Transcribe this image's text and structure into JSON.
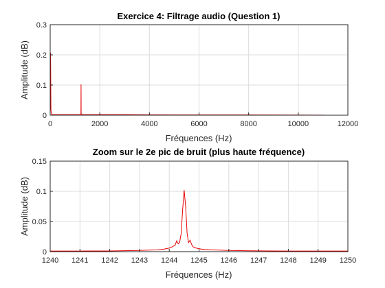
{
  "chart_data": [
    {
      "type": "line",
      "title": "Exercice 4: Filtrage audio (Question 1)",
      "xlabel": "Fréquences (Hz)",
      "ylabel": "Amplitude (dB)",
      "xlim": [
        0,
        12000
      ],
      "ylim": [
        0,
        0.3
      ],
      "xticks": [
        0,
        2000,
        4000,
        6000,
        8000,
        10000,
        12000
      ],
      "yticks": [
        0,
        0.1,
        0.2,
        0.3
      ],
      "xtick_labels": [
        "0",
        "2000",
        "4000",
        "6000",
        "8000",
        "10000",
        "12000"
      ],
      "ytick_labels": [
        "0",
        "0.1",
        "0.2",
        "0.3"
      ],
      "grid": true,
      "color": "#e60000",
      "series": [
        {
          "x": [
            0,
            8,
            15,
            22,
            30,
            45,
            60,
            100,
            200,
            400,
            700,
            1000,
            1200,
            1230,
            1240,
            1244.5,
            1249,
            1260,
            1300,
            1600,
            2000,
            2500,
            3000,
            4000,
            5000,
            6000,
            7000,
            8000,
            9000,
            10000,
            11025
          ],
          "y": [
            0.003,
            0.06,
            0.207,
            0.14,
            0.02,
            0.006,
            0.003,
            0.002,
            0.002,
            0.002,
            0.002,
            0.002,
            0.002,
            0.003,
            0.006,
            0.102,
            0.006,
            0.003,
            0.002,
            0.002,
            0.002,
            0.002,
            0.002,
            0.0015,
            0.001,
            0.001,
            0.001,
            0.001,
            0.0008,
            0.0006,
            0.0003
          ]
        }
      ]
    },
    {
      "type": "line",
      "title": "Zoom sur le 2e pic de bruit (plus haute fréquence)",
      "xlabel": "Fréquences (Hz)",
      "ylabel": "Amplitude (dB)",
      "xlim": [
        1240,
        1250
      ],
      "ylim": [
        0,
        0.15
      ],
      "xticks": [
        1240,
        1241,
        1242,
        1243,
        1244,
        1245,
        1246,
        1247,
        1248,
        1249,
        1250
      ],
      "yticks": [
        0,
        0.05,
        0.1,
        0.15
      ],
      "xtick_labels": [
        "1240",
        "1241",
        "1242",
        "1243",
        "1244",
        "1245",
        "1246",
        "1247",
        "1248",
        "1249",
        "1250"
      ],
      "ytick_labels": [
        "0",
        "0.05",
        "0.1",
        "0.15"
      ],
      "grid": true,
      "color": "#e60000",
      "series": [
        {
          "x": [
            1240,
            1240.5,
            1241,
            1241.5,
            1242,
            1242.5,
            1243,
            1243.3,
            1243.6,
            1243.8,
            1243.9,
            1244.0,
            1244.1,
            1244.2,
            1244.25,
            1244.3,
            1244.35,
            1244.4,
            1244.45,
            1244.5,
            1244.55,
            1244.6,
            1244.65,
            1244.7,
            1244.75,
            1244.8,
            1244.9,
            1245.0,
            1245.1,
            1245.2,
            1245.4,
            1245.7,
            1246,
            1246.5,
            1247,
            1247.5,
            1248,
            1248.5,
            1249,
            1249.5,
            1250
          ],
          "y": [
            0.001,
            0.001,
            0.001,
            0.0012,
            0.0012,
            0.0015,
            0.002,
            0.0025,
            0.003,
            0.004,
            0.005,
            0.006,
            0.008,
            0.011,
            0.018,
            0.013,
            0.016,
            0.03,
            0.07,
            0.102,
            0.075,
            0.03,
            0.015,
            0.019,
            0.012,
            0.008,
            0.006,
            0.005,
            0.004,
            0.0035,
            0.003,
            0.0025,
            0.002,
            0.0015,
            0.0013,
            0.0012,
            0.001,
            0.001,
            0.001,
            0.001,
            0.001
          ]
        }
      ]
    }
  ]
}
